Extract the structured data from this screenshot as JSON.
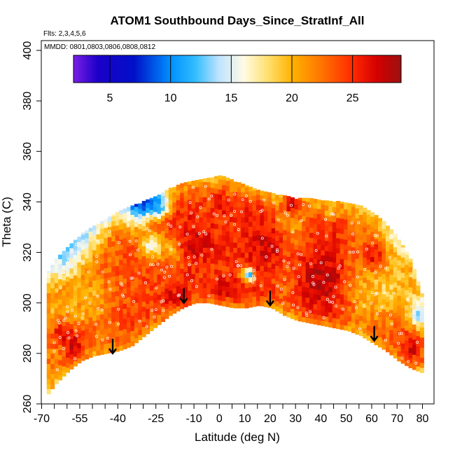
{
  "chart_data": {
    "type": "heatmap",
    "title": "ATOM1 Southbound Days_Since_StratInf_All",
    "flights_label": "Flts: 2,3,4,5,6",
    "dates_label": "MMDD: 0801,0803,0806,0808,0812",
    "xlabel": "Latitude (deg N)",
    "ylabel": "Theta (C)",
    "xlim": [
      -72,
      85
    ],
    "ylim": [
      260,
      405
    ],
    "x_ticks": [
      -70,
      -55,
      -40,
      -25,
      -10,
      0,
      10,
      20,
      30,
      40,
      50,
      60,
      70,
      80
    ],
    "x_tick_labels": [
      "-70",
      "-55",
      "-40",
      "-25",
      "-10",
      "0",
      "10",
      "20",
      "30",
      "40",
      "50",
      "60",
      "70",
      "80"
    ],
    "x_minor_step": 5,
    "y_ticks": [
      260,
      280,
      300,
      320,
      340,
      360,
      380,
      400
    ],
    "y_tick_labels": [
      "260",
      "280",
      "300",
      "320",
      "340",
      "360",
      "380",
      "400"
    ],
    "colorbar": {
      "range": [
        2,
        29
      ],
      "ticks": [
        5,
        10,
        15,
        20,
        25
      ],
      "tick_labels": [
        "5",
        "10",
        "15",
        "20",
        "25"
      ],
      "stops": [
        {
          "v": 2,
          "color": "#7a1fe6"
        },
        {
          "v": 4,
          "color": "#1c00c8"
        },
        {
          "v": 7,
          "color": "#0010c8"
        },
        {
          "v": 10,
          "color": "#0090ff"
        },
        {
          "v": 12,
          "color": "#30bcff"
        },
        {
          "v": 14,
          "color": "#bfe3ff"
        },
        {
          "v": 16,
          "color": "#fffbe6"
        },
        {
          "v": 18,
          "color": "#ffe070"
        },
        {
          "v": 20,
          "color": "#ffb300"
        },
        {
          "v": 22,
          "color": "#ff8000"
        },
        {
          "v": 25,
          "color": "#ff2a00"
        },
        {
          "v": 27,
          "color": "#d40000"
        },
        {
          "v": 29,
          "color": "#9c1010"
        }
      ]
    },
    "coverage_bottom": [
      [
        -68,
        264
      ],
      [
        -65,
        268
      ],
      [
        -60,
        273
      ],
      [
        -55,
        277
      ],
      [
        -50,
        279
      ],
      [
        -45,
        280
      ],
      [
        -40,
        281
      ],
      [
        -35,
        283
      ],
      [
        -30,
        287
      ],
      [
        -25,
        291
      ],
      [
        -20,
        295
      ],
      [
        -15,
        298
      ],
      [
        -10,
        300
      ],
      [
        -5,
        300
      ],
      [
        0,
        299
      ],
      [
        5,
        298
      ],
      [
        10,
        298
      ],
      [
        15,
        299
      ],
      [
        20,
        298
      ],
      [
        25,
        295
      ],
      [
        30,
        293
      ],
      [
        35,
        292
      ],
      [
        40,
        291
      ],
      [
        45,
        290
      ],
      [
        50,
        289
      ],
      [
        55,
        287
      ],
      [
        60,
        284
      ],
      [
        65,
        281
      ],
      [
        70,
        277
      ],
      [
        75,
        274
      ],
      [
        80,
        272
      ]
    ],
    "coverage_top": [
      [
        -68,
        312
      ],
      [
        -65,
        317
      ],
      [
        -60,
        322
      ],
      [
        -55,
        327
      ],
      [
        -50,
        330
      ],
      [
        -45,
        333
      ],
      [
        -40,
        336
      ],
      [
        -35,
        338
      ],
      [
        -30,
        340
      ],
      [
        -25,
        342
      ],
      [
        -20,
        345
      ],
      [
        -15,
        347
      ],
      [
        -10,
        348
      ],
      [
        -5,
        349
      ],
      [
        0,
        350
      ],
      [
        5,
        348
      ],
      [
        10,
        346
      ],
      [
        15,
        344
      ],
      [
        20,
        343
      ],
      [
        25,
        342
      ],
      [
        30,
        341
      ],
      [
        35,
        341
      ],
      [
        40,
        340
      ],
      [
        45,
        340
      ],
      [
        50,
        339
      ],
      [
        55,
        338
      ],
      [
        60,
        335
      ],
      [
        65,
        331
      ],
      [
        70,
        325
      ],
      [
        75,
        316
      ],
      [
        80,
        300
      ]
    ],
    "field_base": [
      [
        -68,
        22
      ],
      [
        -55,
        23
      ],
      [
        -45,
        23
      ],
      [
        -35,
        24
      ],
      [
        -25,
        24
      ],
      [
        -15,
        25
      ],
      [
        -5,
        24
      ],
      [
        5,
        25
      ],
      [
        15,
        25
      ],
      [
        25,
        23
      ],
      [
        35,
        25
      ],
      [
        45,
        25
      ],
      [
        55,
        23
      ],
      [
        65,
        24
      ],
      [
        75,
        23
      ],
      [
        80,
        22
      ]
    ],
    "anomalies": [
      {
        "lat": -63,
        "theta": 322,
        "dlat": 10,
        "dtheta": 14,
        "days": 13
      },
      {
        "lat": -56,
        "theta": 330,
        "dlat": 8,
        "dtheta": 10,
        "days": 14
      },
      {
        "lat": -48,
        "theta": 337,
        "dlat": 8,
        "dtheta": 7,
        "days": 13
      },
      {
        "lat": -33,
        "theta": 336,
        "dlat": 5,
        "dtheta": 8,
        "days": 14
      },
      {
        "lat": -31,
        "theta": 340,
        "dlat": 7,
        "dtheta": 5,
        "days": 6
      },
      {
        "lat": -25,
        "theta": 337,
        "dlat": 4,
        "dtheta": 4,
        "days": 10
      },
      {
        "lat": -27,
        "theta": 322,
        "dlat": 5,
        "dtheta": 5,
        "days": 16
      },
      {
        "lat": -18,
        "theta": 320,
        "dlat": 4,
        "dtheta": 6,
        "days": 18
      },
      {
        "lat": 10,
        "theta": 311,
        "dlat": 3,
        "dtheta": 3,
        "days": 16
      },
      {
        "lat": 11,
        "theta": 310,
        "dlat": 1.5,
        "dtheta": 2,
        "days": 8
      },
      {
        "lat": 27,
        "theta": 333,
        "dlat": 6,
        "dtheta": 10,
        "days": 20
      },
      {
        "lat": 43,
        "theta": 338,
        "dlat": 5,
        "dtheta": 5,
        "days": 20
      },
      {
        "lat": 65,
        "theta": 305,
        "dlat": 14,
        "dtheta": 14,
        "days": 19
      },
      {
        "lat": 70,
        "theta": 325,
        "dlat": 8,
        "dtheta": 10,
        "days": 17
      },
      {
        "lat": 78,
        "theta": 295,
        "dlat": 4,
        "dtheta": 7,
        "days": 14
      },
      {
        "lat": -66,
        "theta": 296,
        "dlat": 4,
        "dtheta": 4,
        "days": 20
      },
      {
        "lat": -50,
        "theta": 300,
        "dlat": 5,
        "dtheta": 8,
        "days": 20
      },
      {
        "lat": -58,
        "theta": 295,
        "dlat": 4,
        "dtheta": 8,
        "days": 20
      }
    ],
    "hotspots": [
      {
        "lat": -10,
        "theta": 323,
        "dlat": 8,
        "dtheta": 8,
        "days": 27
      },
      {
        "lat": 0,
        "theta": 305,
        "dlat": 7,
        "dtheta": 4,
        "days": 27
      },
      {
        "lat": 18,
        "theta": 322,
        "dlat": 7,
        "dtheta": 10,
        "days": 27
      },
      {
        "lat": 40,
        "theta": 308,
        "dlat": 8,
        "dtheta": 10,
        "days": 28
      },
      {
        "lat": -18,
        "theta": 301,
        "dlat": 4,
        "dtheta": 3,
        "days": 28
      },
      {
        "lat": -58,
        "theta": 282,
        "dlat": 4,
        "dtheta": 6,
        "days": 27
      },
      {
        "lat": -62,
        "theta": 287,
        "dlat": 4,
        "dtheta": 4,
        "days": 27
      },
      {
        "lat": 60,
        "theta": 318,
        "dlat": 5,
        "dtheta": 6,
        "days": 26
      },
      {
        "lat": 75,
        "theta": 282,
        "dlat": 4,
        "dtheta": 6,
        "days": 27
      },
      {
        "lat": 28,
        "theta": 338,
        "dlat": 4,
        "dtheta": 4,
        "days": 27
      },
      {
        "lat": 0,
        "theta": 338,
        "dlat": 4,
        "dtheta": 4,
        "days": 26
      }
    ],
    "tropopause_arrows": [
      {
        "lat": -42,
        "theta": 280
      },
      {
        "lat": -14,
        "theta": 300
      },
      {
        "lat": 20,
        "theta": 299
      },
      {
        "lat": 61,
        "theta": 285
      }
    ],
    "observations": {
      "count": 260,
      "note": "white open circles mark sampled points along flight tracks"
    }
  }
}
